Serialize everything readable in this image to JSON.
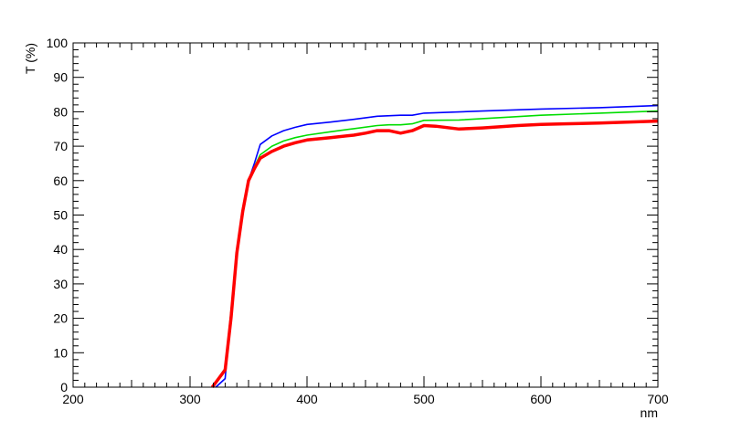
{
  "chart_data": {
    "type": "line",
    "xlabel": "nm",
    "ylabel": "T (%)",
    "xlim": [
      200,
      700
    ],
    "ylim": [
      0,
      100
    ],
    "x_major_ticks": [
      200,
      300,
      400,
      500,
      600,
      700
    ],
    "x_tick_labels": [
      "200",
      "300",
      "400",
      "500",
      "600",
      "700"
    ],
    "y_major_ticks": [
      0,
      10,
      20,
      30,
      40,
      50,
      60,
      70,
      80,
      90,
      100
    ],
    "y_tick_labels": [
      "0",
      "10",
      "20",
      "30",
      "40",
      "50",
      "60",
      "70",
      "80",
      "90",
      "100"
    ],
    "grid": false,
    "legend": "none",
    "series": [
      {
        "color": "#0000ff",
        "stroke": "thin",
        "points": [
          [
            322,
            0
          ],
          [
            330,
            2.5
          ],
          [
            335,
            22
          ],
          [
            340,
            38
          ],
          [
            345,
            50
          ],
          [
            350,
            60
          ],
          [
            355,
            65
          ],
          [
            360,
            70.5
          ],
          [
            370,
            73
          ],
          [
            380,
            74.5
          ],
          [
            390,
            75.5
          ],
          [
            400,
            76.3
          ],
          [
            420,
            77
          ],
          [
            440,
            77.8
          ],
          [
            460,
            78.7
          ],
          [
            480,
            79
          ],
          [
            490,
            79
          ],
          [
            500,
            79.6
          ],
          [
            550,
            80.2
          ],
          [
            600,
            80.8
          ],
          [
            650,
            81.2
          ],
          [
            700,
            81.8
          ]
        ]
      },
      {
        "color": "#00dd00",
        "stroke": "thin",
        "points": [
          [
            319,
            0
          ],
          [
            330,
            5.5
          ],
          [
            335,
            22
          ],
          [
            340,
            40
          ],
          [
            345,
            52
          ],
          [
            350,
            60
          ],
          [
            355,
            64
          ],
          [
            360,
            67.5
          ],
          [
            370,
            70
          ],
          [
            380,
            71.5
          ],
          [
            390,
            72.5
          ],
          [
            400,
            73.2
          ],
          [
            420,
            74.2
          ],
          [
            440,
            75.1
          ],
          [
            460,
            76
          ],
          [
            470,
            76.2
          ],
          [
            480,
            76.2
          ],
          [
            490,
            76.5
          ],
          [
            500,
            77.5
          ],
          [
            530,
            77.6
          ],
          [
            560,
            78.2
          ],
          [
            600,
            79
          ],
          [
            650,
            79.6
          ],
          [
            700,
            80.2
          ]
        ]
      },
      {
        "color": "#ff0000",
        "stroke": "thick",
        "points": [
          [
            319,
            0
          ],
          [
            330,
            5
          ],
          [
            335,
            20
          ],
          [
            340,
            39
          ],
          [
            345,
            51
          ],
          [
            350,
            60
          ],
          [
            355,
            63.5
          ],
          [
            360,
            66.5
          ],
          [
            370,
            68.5
          ],
          [
            380,
            70
          ],
          [
            390,
            71
          ],
          [
            400,
            71.8
          ],
          [
            420,
            72.5
          ],
          [
            440,
            73.2
          ],
          [
            450,
            73.8
          ],
          [
            460,
            74.5
          ],
          [
            470,
            74.5
          ],
          [
            480,
            73.8
          ],
          [
            490,
            74.5
          ],
          [
            500,
            76
          ],
          [
            510,
            75.8
          ],
          [
            530,
            75
          ],
          [
            550,
            75.3
          ],
          [
            580,
            76
          ],
          [
            600,
            76.3
          ],
          [
            620,
            76.5
          ],
          [
            650,
            76.7
          ],
          [
            700,
            77.3
          ]
        ]
      }
    ]
  }
}
